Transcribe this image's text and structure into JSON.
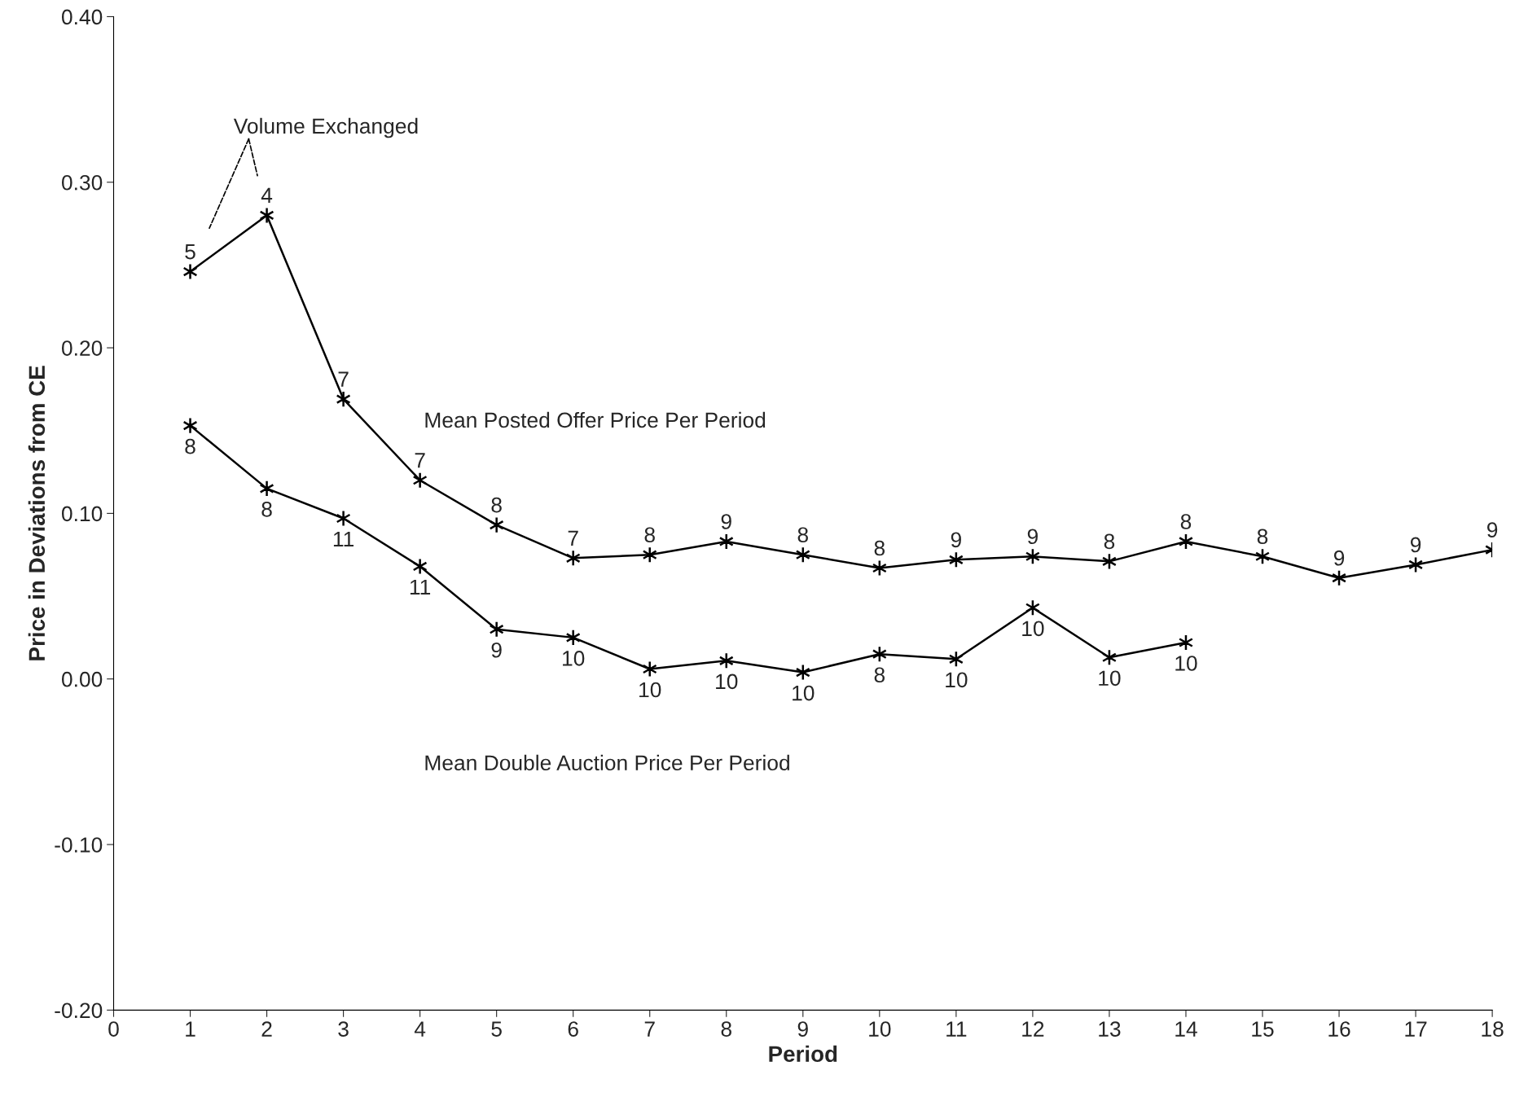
{
  "chart_data": {
    "type": "line",
    "xlabel": "Period",
    "ylabel": "Price in Deviations from CE",
    "xlim": [
      0,
      18
    ],
    "xticks": [
      0,
      1,
      2,
      3,
      4,
      5,
      6,
      7,
      8,
      9,
      10,
      11,
      12,
      13,
      14,
      15,
      16,
      17,
      18
    ],
    "ylim": [
      -0.2,
      0.4
    ],
    "yticks": [
      {
        "value": -0.2,
        "label": "-0.20"
      },
      {
        "value": -0.1,
        "label": "-0.10"
      },
      {
        "value": 0,
        "label": "0.00"
      },
      {
        "value": 0.1,
        "label": "0.10"
      },
      {
        "value": 0.2,
        "label": "0.20"
      },
      {
        "value": 0.3,
        "label": "0.30"
      },
      {
        "value": 0.4,
        "label": "0.40"
      }
    ],
    "grid": false,
    "legend": false,
    "marker": "cross",
    "line_style": "solid",
    "series": [
      {
        "color": "#000000",
        "x": [
          1,
          2,
          3,
          4,
          5,
          6,
          7,
          8,
          9,
          10,
          11,
          12,
          13,
          14,
          15,
          16,
          17,
          18
        ],
        "values": [
          0.246,
          0.28,
          0.169,
          0.12,
          0.093,
          0.073,
          0.075,
          0.083,
          0.075,
          0.067,
          0.072,
          0.074,
          0.071,
          0.083,
          0.074,
          0.061,
          0.069,
          0.078
        ]
      },
      {
        "color": "#000000",
        "x": [
          1,
          2,
          3,
          4,
          5,
          6,
          7,
          8,
          9,
          10,
          11,
          12,
          13,
          14
        ],
        "values": [
          0.153,
          0.115,
          0.097,
          0.068,
          0.03,
          0.025,
          0.006,
          0.011,
          0.004,
          0.015,
          0.012,
          0.043,
          0.013,
          0.022
        ]
      }
    ],
    "annotations": [
      "Volume Exchanged",
      "Mean Posted Offer Price Per Period",
      "Mean Double Auction Price Per Period",
      {
        "text": "5",
        "x": 1,
        "y": 0.246
      },
      {
        "text": "4",
        "x": 2,
        "y": 0.28
      },
      {
        "text": "7",
        "x": 3,
        "y": 0.169
      },
      {
        "text": "7",
        "x": 4,
        "y": 0.12
      },
      {
        "text": "8",
        "x": 5,
        "y": 0.093
      },
      {
        "text": "7",
        "x": 6,
        "y": 0.073
      },
      {
        "text": "8",
        "x": 7,
        "y": 0.075
      },
      {
        "text": "9",
        "x": 8,
        "y": 0.083
      },
      {
        "text": "8",
        "x": 9,
        "y": 0.075
      },
      {
        "text": "8",
        "x": 10,
        "y": 0.067
      },
      {
        "text": "9",
        "x": 11,
        "y": 0.072
      },
      {
        "text": "9",
        "x": 12,
        "y": 0.074
      },
      {
        "text": "8",
        "x": 13,
        "y": 0.071
      },
      {
        "text": "8",
        "x": 14,
        "y": 0.083
      },
      {
        "text": "8",
        "x": 15,
        "y": 0.074
      },
      {
        "text": "9",
        "x": 16,
        "y": 0.061
      },
      {
        "text": "9",
        "x": 17,
        "y": 0.069
      },
      {
        "text": "9",
        "x": 18,
        "y": 0.078
      },
      {
        "text": "8",
        "x": 1,
        "y": 0.153
      },
      {
        "text": "8",
        "x": 2,
        "y": 0.115
      },
      {
        "text": "11",
        "x": 3,
        "y": 0.097
      },
      {
        "text": "11",
        "x": 4,
        "y": 0.068
      },
      {
        "text": "9",
        "x": 5,
        "y": 0.03
      },
      {
        "text": "10",
        "x": 6,
        "y": 0.025
      },
      {
        "text": "10",
        "x": 7,
        "y": 0.006
      },
      {
        "text": "10",
        "x": 8,
        "y": 0.011
      },
      {
        "text": "10",
        "x": 9,
        "y": 0.004
      },
      {
        "text": "8",
        "x": 10,
        "y": 0.015
      },
      {
        "text": "10",
        "x": 11,
        "y": 0.012
      },
      {
        "text": "10",
        "x": 12,
        "y": 0.043
      },
      {
        "text": "10",
        "x": 13,
        "y": 0.013
      },
      {
        "text": "10",
        "x": 14,
        "y": 0.022
      }
    ]
  }
}
